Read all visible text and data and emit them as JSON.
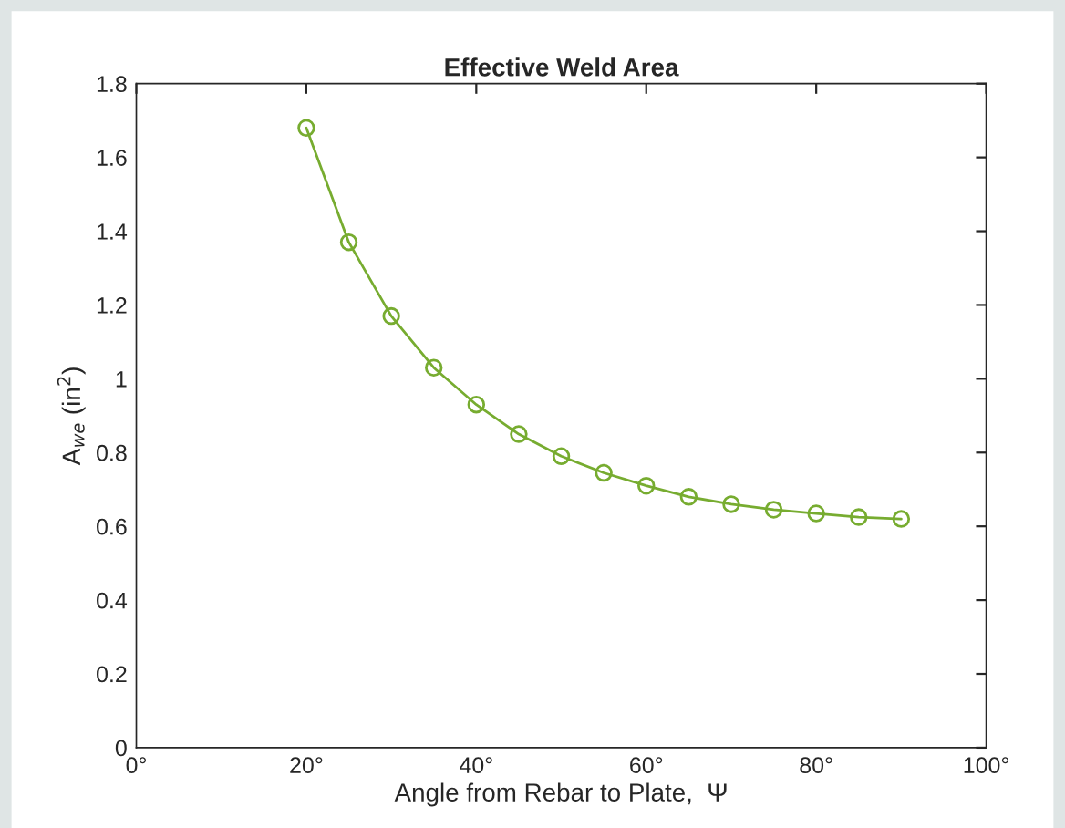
{
  "chart_data": {
    "type": "line",
    "title": "Effective Weld Area",
    "xlabel": "Angle from Rebar to Plate,  Ψ",
    "ylabel": "A$_{we}$ (in$^{2}$)",
    "x": [
      20,
      25,
      30,
      35,
      40,
      45,
      50,
      55,
      60,
      65,
      70,
      75,
      80,
      85,
      90
    ],
    "series": [
      {
        "color": "#77ac30",
        "values": [
          1.68,
          1.37,
          1.17,
          1.03,
          0.93,
          0.85,
          0.79,
          0.745,
          0.71,
          0.68,
          0.66,
          0.645,
          0.635,
          0.625,
          0.62
        ]
      }
    ],
    "marker": "circle",
    "line_style": "solid",
    "grid": false,
    "legend": false,
    "xlim": [
      0,
      100
    ],
    "xticks": [
      {
        "value": 0,
        "label": "0°"
      },
      {
        "value": 20,
        "label": "20°"
      },
      {
        "value": 40,
        "label": "40°"
      },
      {
        "value": 60,
        "label": "60°"
      },
      {
        "value": 80,
        "label": "80°"
      },
      {
        "value": 100,
        "label": "100°"
      }
    ],
    "ylim": [
      0,
      1.8
    ],
    "yticks": [
      0,
      0.2,
      0.4,
      0.6,
      0.8,
      1,
      1.2,
      1.4,
      1.6,
      1.8
    ]
  }
}
